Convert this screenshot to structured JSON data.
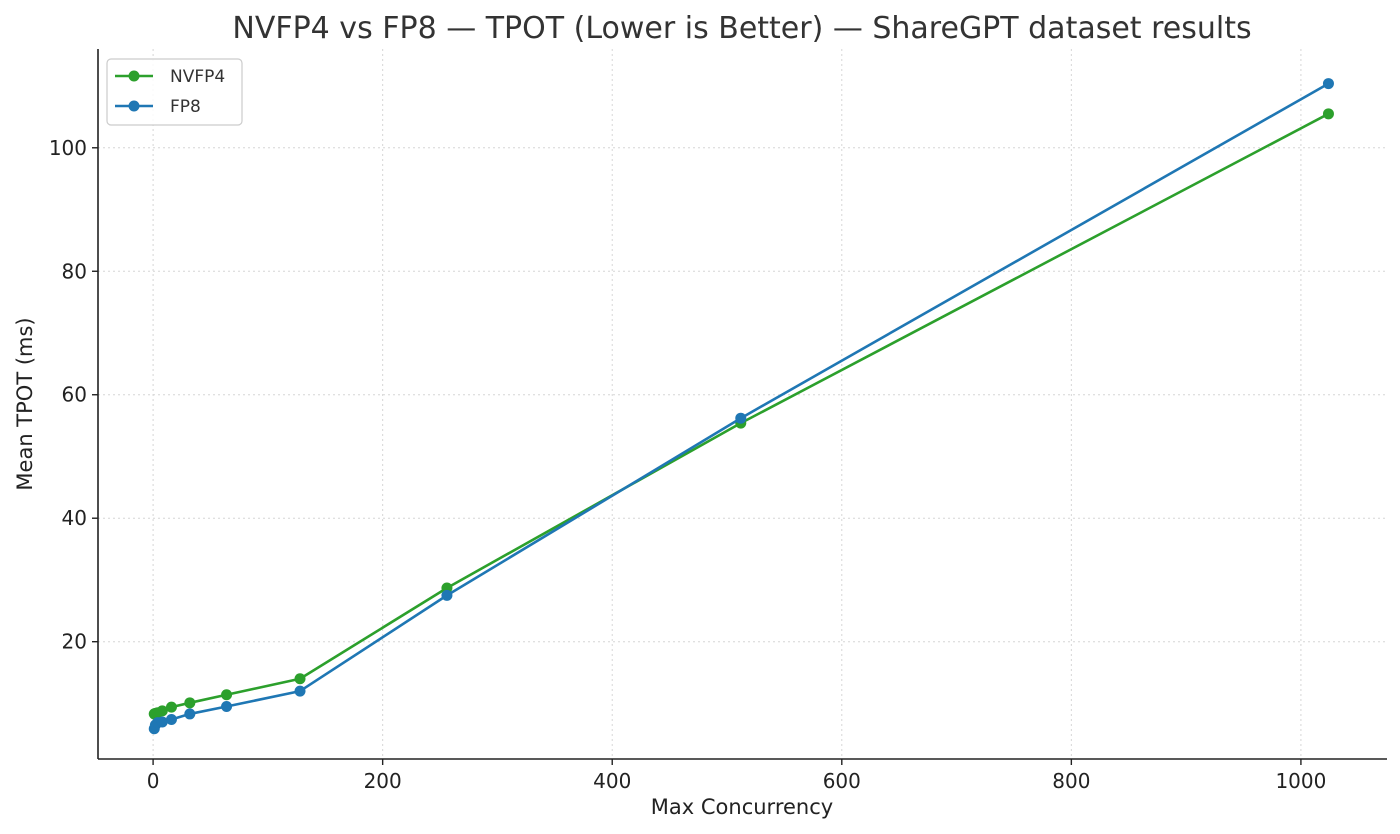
{
  "chart_data": {
    "type": "line",
    "title": "NVFP4 vs FP8 — TPOT (Lower is Better) — ShareGPT dataset results",
    "xlabel": "Max Concurrency",
    "ylabel": "Mean TPOT (ms)",
    "xlim": [
      -48,
      1075
    ],
    "ylim": [
      1,
      116
    ],
    "xticks": [
      0,
      200,
      400,
      600,
      800,
      1000
    ],
    "yticks": [
      20,
      40,
      60,
      80,
      100
    ],
    "grid": true,
    "legend_position": "top-left",
    "x": [
      1,
      2,
      4,
      8,
      16,
      32,
      64,
      128,
      256,
      512,
      1024
    ],
    "series": [
      {
        "name": "NVFP4",
        "color": "#2ca02c",
        "values": [
          8.3,
          8.4,
          8.5,
          8.8,
          9.4,
          10.1,
          11.4,
          14.0,
          28.7,
          55.4,
          105.5
        ]
      },
      {
        "name": "FP8",
        "color": "#1f77b4",
        "values": [
          5.9,
          6.5,
          6.9,
          7.0,
          7.4,
          8.3,
          9.5,
          12.0,
          27.5,
          56.2,
          110.4
        ]
      }
    ]
  }
}
